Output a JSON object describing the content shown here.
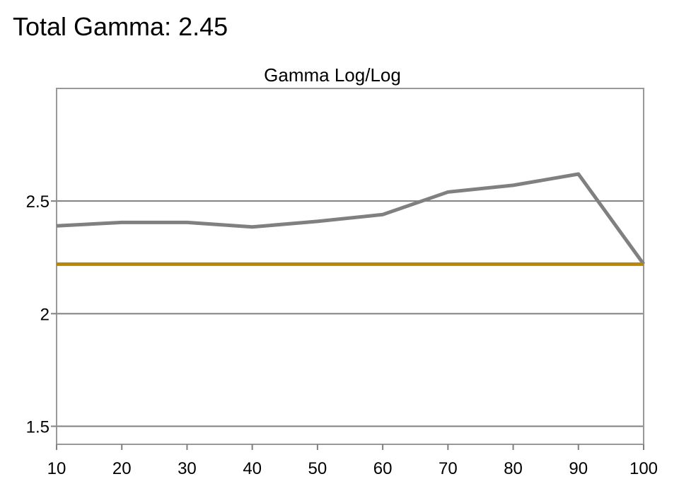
{
  "heading": "Total Gamma: 2.45",
  "colors": {
    "measured": "#808080",
    "target": "#b8860b",
    "grid": "#808080",
    "frame": "#999999"
  },
  "chart_data": {
    "type": "line",
    "title": "Gamma Log/Log",
    "xlabel": "",
    "ylabel": "",
    "x": [
      10,
      20,
      30,
      40,
      50,
      60,
      70,
      80,
      90,
      100
    ],
    "xlim": [
      10,
      100
    ],
    "ylim": [
      1.42,
      3.0
    ],
    "x_ticks": [
      "10",
      "20",
      "30",
      "40",
      "50",
      "60",
      "70",
      "80",
      "90",
      "100"
    ],
    "y_ticks": [
      {
        "value": 1.5,
        "label": "1.5"
      },
      {
        "value": 2,
        "label": "2"
      },
      {
        "value": 2.5,
        "label": "2.5"
      }
    ],
    "grid": "horizontal",
    "series": [
      {
        "values": [
          2.39,
          2.405,
          2.405,
          2.385,
          2.41,
          2.44,
          2.54,
          2.57,
          2.62,
          2.22
        ],
        "color": "#808080"
      },
      {
        "values": [
          2.22,
          2.22,
          2.22,
          2.22,
          2.22,
          2.22,
          2.22,
          2.22,
          2.22,
          2.22
        ],
        "color": "#b8860b"
      }
    ]
  }
}
